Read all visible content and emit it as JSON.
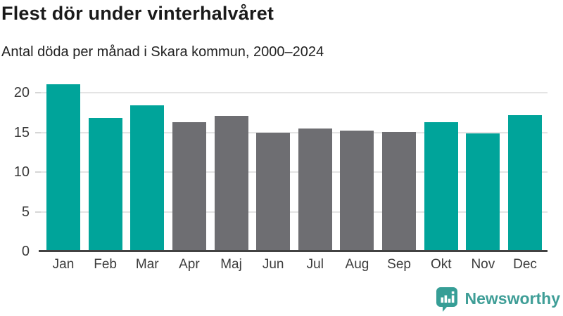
{
  "header": {
    "title": "Flest dör under vinterhalvåret",
    "subtitle": "Antal döda per månad i Skara kommun, 2000–2024"
  },
  "chart_data": {
    "type": "bar",
    "title": "Flest dör under vinterhalvåret",
    "subtitle": "Antal döda per månad i Skara kommun, 2000–2024",
    "categories": [
      "Jan",
      "Feb",
      "Mar",
      "Apr",
      "Maj",
      "Jun",
      "Jul",
      "Aug",
      "Sep",
      "Okt",
      "Nov",
      "Dec"
    ],
    "values": [
      21.1,
      16.8,
      18.4,
      16.3,
      17.1,
      15.0,
      15.5,
      15.2,
      15.1,
      16.3,
      14.9,
      17.2
    ],
    "bar_colors": [
      "winter",
      "winter",
      "winter",
      "summer",
      "summer",
      "summer",
      "summer",
      "summer",
      "summer",
      "winter",
      "winter",
      "winter"
    ],
    "palette": {
      "winter": "#00a49a",
      "summer": "#6e6e72"
    },
    "xlabel": "",
    "ylabel": "",
    "ylim": [
      0,
      21.8
    ],
    "yticks": [
      0,
      5,
      10,
      15,
      20
    ],
    "grid": true,
    "legend": false
  },
  "footer": {
    "brand": "Newsworthy",
    "brand_color": "#3f9e97"
  }
}
